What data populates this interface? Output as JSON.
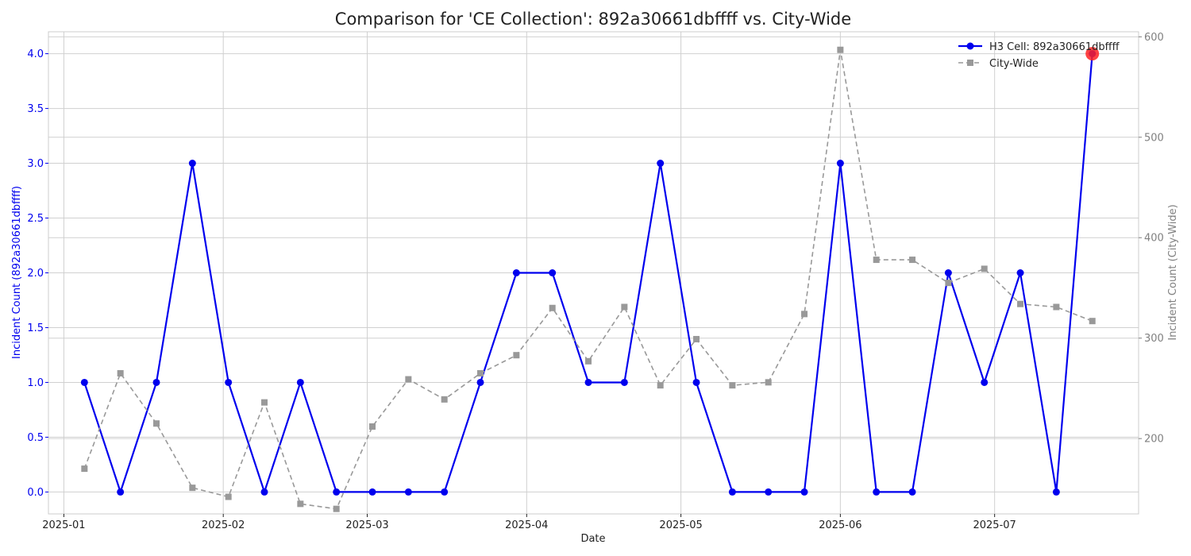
{
  "chart_data": {
    "type": "line",
    "title": "Comparison for 'CE Collection': 892a30661dbffff vs. City-Wide",
    "xlabel": "Date",
    "ylabel_left": "Incident Count (892a30661dbffff)",
    "ylabel_right": "Incident Count (City-Wide)",
    "x": [
      "2025-01-05",
      "2025-01-12",
      "2025-01-19",
      "2025-01-26",
      "2025-02-02",
      "2025-02-09",
      "2025-02-16",
      "2025-02-23",
      "2025-03-02",
      "2025-03-09",
      "2025-03-16",
      "2025-03-23",
      "2025-03-30",
      "2025-04-06",
      "2025-04-13",
      "2025-04-20",
      "2025-04-27",
      "2025-05-04",
      "2025-05-11",
      "2025-05-18",
      "2025-05-25",
      "2025-06-01",
      "2025-06-08",
      "2025-06-15",
      "2025-06-22",
      "2025-06-29",
      "2025-07-06",
      "2025-07-13",
      "2025-07-20"
    ],
    "x_ticks": [
      "2025-01",
      "2025-02",
      "2025-03",
      "2025-04",
      "2025-05",
      "2025-06",
      "2025-07"
    ],
    "y_left_ticks": [
      "0.0",
      "0.5",
      "1.0",
      "1.5",
      "2.0",
      "2.5",
      "3.0",
      "3.5",
      "4.0"
    ],
    "y_right_ticks": [
      "200",
      "300",
      "400",
      "500",
      "600"
    ],
    "ylim_left": [
      -0.2,
      4.2
    ],
    "ylim_right": [
      125,
      605
    ],
    "xlim": [
      "2024-12-29",
      "2025-07-29"
    ],
    "series": [
      {
        "name": "H3 Cell: 892a30661dbffff",
        "axis": "left",
        "color": "#0000ee",
        "style": "solid",
        "marker": "circle",
        "values": [
          1,
          0,
          1,
          3,
          1,
          0,
          1,
          0,
          0,
          0,
          0,
          1,
          2,
          2,
          1,
          1,
          3,
          1,
          0,
          0,
          0,
          3,
          0,
          0,
          2,
          1,
          2,
          0,
          4
        ]
      },
      {
        "name": "City-Wide",
        "axis": "right",
        "color": "#999999",
        "style": "dashed",
        "marker": "square",
        "values": [
          170,
          265,
          215,
          151,
          142,
          236,
          135,
          130,
          212,
          259,
          239,
          265,
          283,
          330,
          277,
          331,
          253,
          299,
          253,
          256,
          324,
          587,
          378,
          378,
          355,
          369,
          334,
          331,
          317
        ]
      }
    ],
    "highlight": {
      "x": "2025-07-20",
      "value": 4,
      "color": "#ff2222"
    },
    "legend_position": "top-right",
    "grid": true
  }
}
